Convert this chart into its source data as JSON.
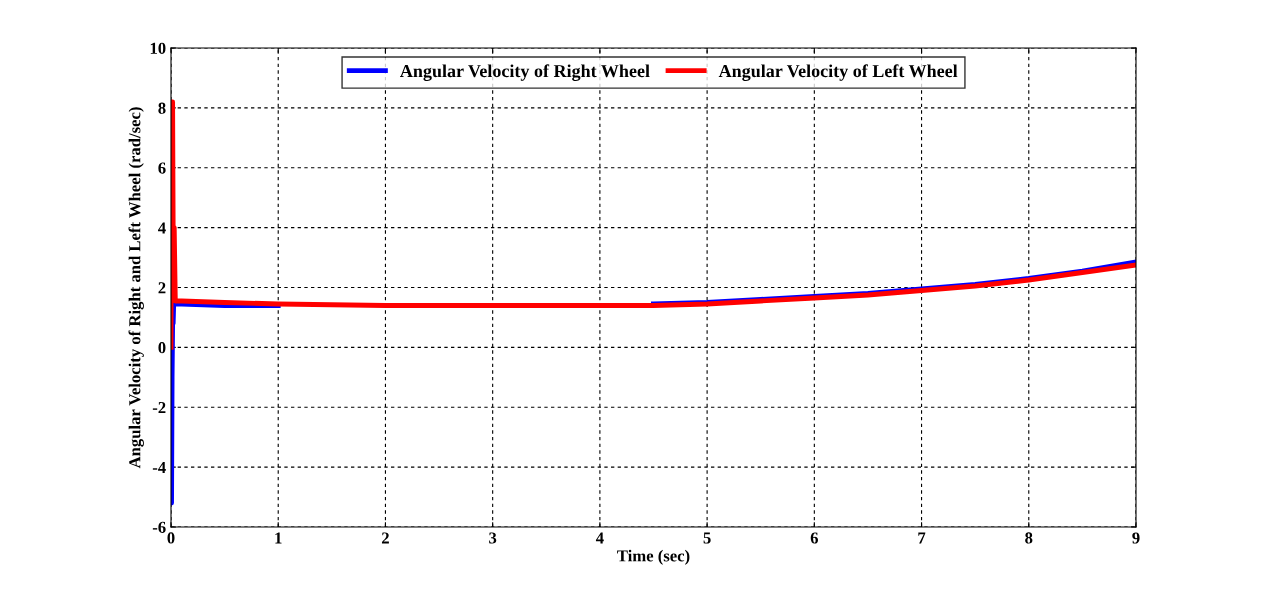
{
  "chart_data": {
    "type": "line",
    "xlabel": "Time (sec)",
    "ylabel": "Angular Velocity of Right and Left Wheel (rad/sec)",
    "series": [
      {
        "name": "Angular Velocity of Right Wheel",
        "color": "#0000ff",
        "x": [
          0,
          0.005,
          0.01,
          0.015,
          0.02,
          0.025,
          0.04,
          0.1,
          0.5,
          1,
          2,
          3,
          4,
          4.5,
          5,
          5.5,
          6,
          6.5,
          7,
          7.5,
          8,
          8.5,
          9
        ],
        "values": [
          0,
          -5.2,
          -1,
          0.8,
          0.8,
          1.45,
          1.45,
          1.45,
          1.4,
          1.4,
          null,
          null,
          null,
          1.45,
          1.5,
          1.6,
          1.7,
          1.8,
          1.95,
          2.1,
          2.3,
          2.55,
          2.85
        ]
      },
      {
        "name": "Angular Velocity of Left Wheel",
        "color": "#ff0000",
        "x": [
          0,
          0.005,
          0.015,
          0.02,
          0.03,
          0.04,
          0.1,
          0.5,
          1,
          2,
          3,
          4,
          4.5,
          5,
          5.5,
          6,
          6.5,
          7,
          7.5,
          8,
          8.5,
          9
        ],
        "values": [
          0,
          8.2,
          8.2,
          4,
          4,
          1.55,
          1.55,
          1.5,
          1.45,
          1.4,
          1.4,
          1.4,
          1.4,
          1.45,
          1.55,
          1.65,
          1.75,
          1.9,
          2.05,
          2.25,
          2.5,
          2.75
        ]
      }
    ],
    "xlim": [
      0,
      9
    ],
    "xticks": [
      0,
      1,
      2,
      3,
      4,
      5,
      6,
      7,
      8,
      9
    ],
    "ylim": [
      -6,
      10
    ],
    "yticks": [
      -6,
      -4,
      -2,
      0,
      2,
      4,
      6,
      8,
      10
    ],
    "grid": true,
    "legend": "top",
    "line_style": "solid",
    "marker": "none"
  }
}
